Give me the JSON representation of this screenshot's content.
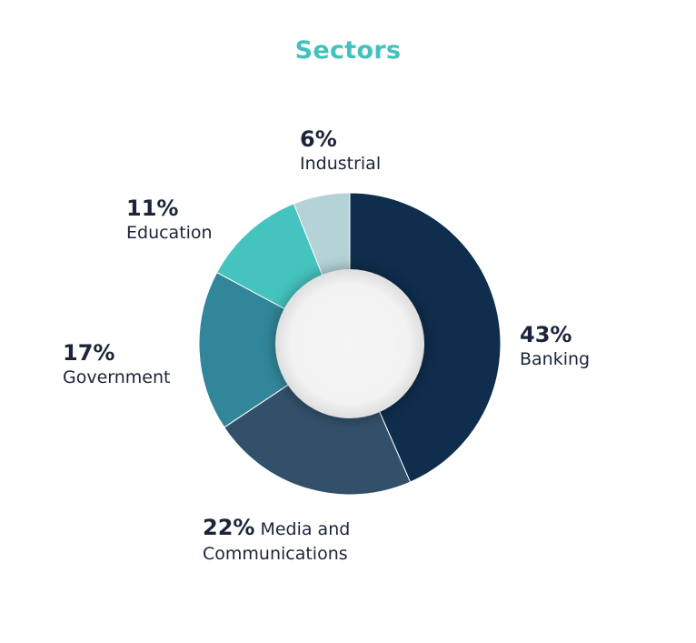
{
  "title": "Sectors",
  "chart_data": {
    "type": "pie",
    "title": "Sectors",
    "donut": true,
    "slices": [
      {
        "label": "Banking",
        "value": 43,
        "value_label": "43%",
        "color": "#0f2d4d"
      },
      {
        "label": "Media and Communications",
        "value": 22,
        "value_label": "22%",
        "color": "#33506b"
      },
      {
        "label": "Government",
        "value": 17,
        "value_label": "17%",
        "color": "#318799"
      },
      {
        "label": "Education",
        "value": 11,
        "value_label": "11%",
        "color": "#45c3bf"
      },
      {
        "label": "Industrial",
        "value": 6,
        "value_label": "6%",
        "color": "#b5d3d7"
      }
    ]
  },
  "labels": {
    "industrial": {
      "pct": "6%",
      "name": "Industrial"
    },
    "education": {
      "pct": "11%",
      "name": "Education"
    },
    "government": {
      "pct": "17%",
      "name": "Government"
    },
    "banking": {
      "pct": "43%",
      "name": "Banking"
    },
    "media": {
      "pct": "22%",
      "name_line1": "Media and",
      "name_line2": "Communications"
    }
  },
  "colors": {
    "title": "#45c1bd",
    "text": "#1b2438",
    "hole": "#f3f3f3"
  }
}
